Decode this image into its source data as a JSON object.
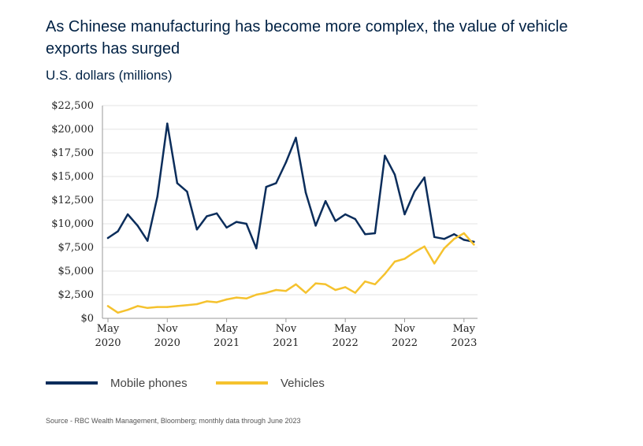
{
  "title": "As Chinese manufacturing has become more complex, the value of vehicle exports has surged",
  "subtitle": "U.S. dollars (millions)",
  "source": "Source - RBC Wealth Management, Bloomberg; monthly data through June 2023",
  "legend": {
    "mobile_label": "Mobile phones",
    "vehicles_label": "Vehicles"
  },
  "colors": {
    "mobile": "#0b2d5b",
    "vehicles": "#f5c22e",
    "grid": "#e3e3e3",
    "axis": "#999999"
  },
  "chart_data": {
    "type": "line",
    "title": "As Chinese manufacturing has become more complex, the value of vehicle exports has surged",
    "ylabel": "U.S. dollars (millions)",
    "xlabel": "",
    "ylim": [
      0,
      22500
    ],
    "yticks": [
      "$0",
      "$2,500",
      "$5,000",
      "$7,500",
      "$10,000",
      "$12,500",
      "$15,000",
      "$17,500",
      "$20,000",
      "$22,500"
    ],
    "xticks": [
      {
        "month": "May",
        "year": "2020",
        "index": 0
      },
      {
        "month": "Nov",
        "year": "2020",
        "index": 6
      },
      {
        "month": "May",
        "year": "2021",
        "index": 12
      },
      {
        "month": "Nov",
        "year": "2021",
        "index": 18
      },
      {
        "month": "May",
        "year": "2022",
        "index": 24
      },
      {
        "month": "Nov",
        "year": "2022",
        "index": 30
      },
      {
        "month": "May",
        "year": "2023",
        "index": 36
      }
    ],
    "x": [
      "2020-05",
      "2020-06",
      "2020-07",
      "2020-08",
      "2020-09",
      "2020-10",
      "2020-11",
      "2020-12",
      "2021-01",
      "2021-02",
      "2021-03",
      "2021-04",
      "2021-05",
      "2021-06",
      "2021-07",
      "2021-08",
      "2021-09",
      "2021-10",
      "2021-11",
      "2021-12",
      "2022-01",
      "2022-02",
      "2022-03",
      "2022-04",
      "2022-05",
      "2022-06",
      "2022-07",
      "2022-08",
      "2022-09",
      "2022-10",
      "2022-11",
      "2022-12",
      "2023-01",
      "2023-02",
      "2023-03",
      "2023-04",
      "2023-05",
      "2023-06"
    ],
    "grid": true,
    "legend_position": "bottom",
    "series": [
      {
        "name": "Mobile phones",
        "values": [
          8500,
          9200,
          11000,
          9800,
          8200,
          12900,
          20600,
          14300,
          13400,
          9400,
          10800,
          11100,
          9600,
          10200,
          10000,
          7400,
          13900,
          14300,
          16500,
          19100,
          13300,
          9800,
          12400,
          10300,
          11000,
          10500,
          8900,
          9000,
          17200,
          15200,
          11000,
          13400,
          14900,
          8600,
          8400,
          8900,
          8300,
          8100
        ]
      },
      {
        "name": "Vehicles",
        "values": [
          1300,
          600,
          900,
          1300,
          1100,
          1200,
          1200,
          1300,
          1400,
          1500,
          1800,
          1700,
          2000,
          2200,
          2100,
          2500,
          2700,
          3000,
          2900,
          3600,
          2700,
          3700,
          3600,
          3000,
          3300,
          2700,
          3900,
          3600,
          4700,
          6000,
          6300,
          7000,
          7600,
          5800,
          7400,
          8400,
          9000,
          7800
        ]
      }
    ]
  }
}
